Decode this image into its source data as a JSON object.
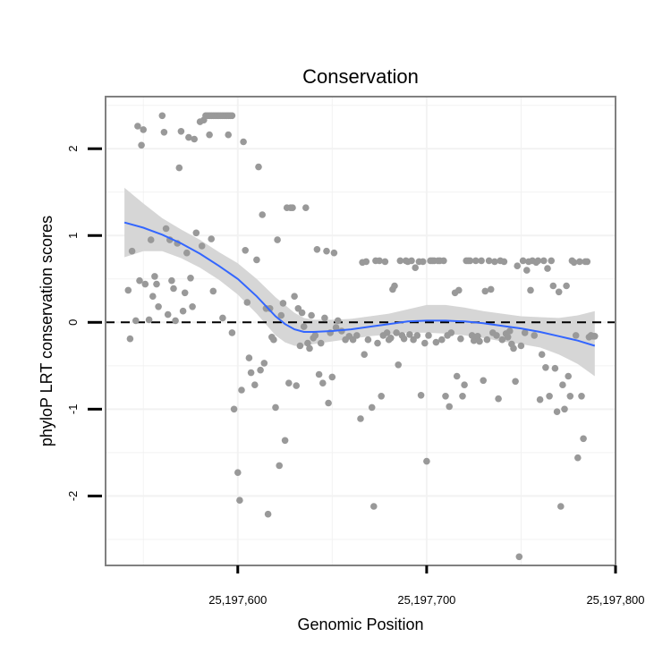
{
  "chart_data": {
    "type": "scatter",
    "title": "Conservation",
    "xlabel": "Genomic Position",
    "ylabel": "phyloP LRT conservation scores",
    "xlim": [
      25197530,
      25197800
    ],
    "ylim": [
      -2.8,
      2.6
    ],
    "x_ticks": [
      25197600,
      25197700,
      25197800
    ],
    "x_tick_labels": [
      "25,197,600",
      "25,197,700",
      "25,197,800"
    ],
    "y_ticks": [
      2,
      1,
      0,
      -1,
      -2
    ],
    "y_tick_labels": [
      "2",
      "1",
      "0",
      "-1",
      "-2"
    ],
    "reference_line": 0,
    "colors": {
      "points": "#999999",
      "smooth": "#3366ff",
      "band": "#d4d4d4",
      "panel_border": "#808080",
      "grid": "#f2f2f2"
    },
    "series": [
      {
        "name": "scores",
        "points": [
          [
            25197542,
            0.37
          ],
          [
            25197543,
            -0.19
          ],
          [
            25197544,
            0.82
          ],
          [
            25197546,
            0.02
          ],
          [
            25197547,
            2.26
          ],
          [
            25197548,
            0.48
          ],
          [
            25197549,
            2.04
          ],
          [
            25197550,
            2.22
          ],
          [
            25197551,
            0.44
          ],
          [
            25197553,
            0.03
          ],
          [
            25197554,
            0.95
          ],
          [
            25197555,
            0.3
          ],
          [
            25197556,
            0.53
          ],
          [
            25197557,
            0.44
          ],
          [
            25197558,
            0.18
          ],
          [
            25197560,
            2.38
          ],
          [
            25197561,
            2.19
          ],
          [
            25197562,
            1.08
          ],
          [
            25197563,
            0.09
          ],
          [
            25197564,
            0.95
          ],
          [
            25197565,
            0.48
          ],
          [
            25197566,
            0.39
          ],
          [
            25197567,
            0.02
          ],
          [
            25197568,
            0.91
          ],
          [
            25197569,
            1.78
          ],
          [
            25197570,
            2.2
          ],
          [
            25197571,
            0.13
          ],
          [
            25197572,
            0.34
          ],
          [
            25197573,
            0.8
          ],
          [
            25197574,
            2.13
          ],
          [
            25197575,
            0.51
          ],
          [
            25197576,
            0.18
          ],
          [
            25197577,
            2.11
          ],
          [
            25197578,
            1.03
          ],
          [
            25197580,
            2.31
          ],
          [
            25197581,
            0.88
          ],
          [
            25197582,
            2.33
          ],
          [
            25197583,
            2.38
          ],
          [
            25197584,
            2.38
          ],
          [
            25197585,
            2.38
          ],
          [
            25197586,
            2.38
          ],
          [
            25197587,
            2.38
          ],
          [
            25197588,
            2.38
          ],
          [
            25197589,
            2.38
          ],
          [
            25197590,
            2.38
          ],
          [
            25197591,
            2.38
          ],
          [
            25197592,
            2.38
          ],
          [
            25197593,
            2.38
          ],
          [
            25197594,
            2.38
          ],
          [
            25197595,
            2.38
          ],
          [
            25197596,
            2.38
          ],
          [
            25197597,
            2.38
          ],
          [
            25197585,
            2.16
          ],
          [
            25197586,
            0.96
          ],
          [
            25197587,
            0.36
          ],
          [
            25197592,
            0.05
          ],
          [
            25197595,
            2.16
          ],
          [
            25197597,
            -0.12
          ],
          [
            25197598,
            -1.0
          ],
          [
            25197600,
            -1.73
          ],
          [
            25197601,
            -2.05
          ],
          [
            25197602,
            -0.78
          ],
          [
            25197603,
            2.08
          ],
          [
            25197604,
            0.83
          ],
          [
            25197605,
            0.23
          ],
          [
            25197606,
            -0.41
          ],
          [
            25197607,
            -0.58
          ],
          [
            25197609,
            -0.72
          ],
          [
            25197610,
            0.72
          ],
          [
            25197611,
            1.79
          ],
          [
            25197612,
            -0.55
          ],
          [
            25197613,
            1.24
          ],
          [
            25197614,
            -0.47
          ],
          [
            25197615,
            0.16
          ],
          [
            25197616,
            -2.21
          ],
          [
            25197617,
            0.16
          ],
          [
            25197618,
            -0.17
          ],
          [
            25197619,
            -0.2
          ],
          [
            25197620,
            -0.98
          ],
          [
            25197621,
            0.95
          ],
          [
            25197622,
            -1.65
          ],
          [
            25197623,
            0.08
          ],
          [
            25197624,
            0.22
          ],
          [
            25197625,
            -1.36
          ],
          [
            25197626,
            1.32
          ],
          [
            25197627,
            -0.7
          ],
          [
            25197628,
            1.32
          ],
          [
            25197629,
            1.32
          ],
          [
            25197630,
            0.3
          ],
          [
            25197631,
            -0.73
          ],
          [
            25197632,
            0.16
          ],
          [
            25197633,
            -0.27
          ],
          [
            25197634,
            0.11
          ],
          [
            25197635,
            -0.05
          ],
          [
            25197636,
            1.32
          ],
          [
            25197637,
            -0.24
          ],
          [
            25197638,
            -0.3
          ],
          [
            25197639,
            0.08
          ],
          [
            25197640,
            -0.18
          ],
          [
            25197641,
            -0.15
          ],
          [
            25197642,
            0.84
          ],
          [
            25197643,
            -0.6
          ],
          [
            25197644,
            -0.24
          ],
          [
            25197645,
            -0.7
          ],
          [
            25197646,
            0.05
          ],
          [
            25197647,
            0.82
          ],
          [
            25197648,
            -0.93
          ],
          [
            25197649,
            -0.12
          ],
          [
            25197650,
            -0.63
          ],
          [
            25197651,
            0.8
          ],
          [
            25197652,
            -0.06
          ],
          [
            25197653,
            0.02
          ],
          [
            25197655,
            -0.1
          ],
          [
            25197657,
            -0.2
          ],
          [
            25197659,
            -0.16
          ],
          [
            25197661,
            -0.2
          ],
          [
            25197663,
            -0.15
          ],
          [
            25197665,
            -1.11
          ],
          [
            25197666,
            0.69
          ],
          [
            25197667,
            -0.37
          ],
          [
            25197668,
            0.7
          ],
          [
            25197669,
            -0.2
          ],
          [
            25197671,
            -0.98
          ],
          [
            25197672,
            -2.12
          ],
          [
            25197673,
            0.71
          ],
          [
            25197674,
            -0.24
          ],
          [
            25197675,
            0.71
          ],
          [
            25197676,
            -0.85
          ],
          [
            25197677,
            -0.15
          ],
          [
            25197678,
            0.7
          ],
          [
            25197679,
            -0.12
          ],
          [
            25197680,
            -0.2
          ],
          [
            25197681,
            -0.18
          ],
          [
            25197682,
            0.38
          ],
          [
            25197683,
            0.42
          ],
          [
            25197684,
            -0.12
          ],
          [
            25197685,
            -0.49
          ],
          [
            25197686,
            0.71
          ],
          [
            25197687,
            -0.15
          ],
          [
            25197688,
            -0.19
          ],
          [
            25197689,
            0.71
          ],
          [
            25197690,
            0.7
          ],
          [
            25197691,
            -0.14
          ],
          [
            25197692,
            0.71
          ],
          [
            25197693,
            -0.2
          ],
          [
            25197694,
            0.63
          ],
          [
            25197695,
            -0.15
          ],
          [
            25197696,
            0.7
          ],
          [
            25197697,
            -0.84
          ],
          [
            25197698,
            0.7
          ],
          [
            25197699,
            -0.24
          ],
          [
            25197700,
            -1.6
          ],
          [
            25197701,
            -0.15
          ],
          [
            25197702,
            0.71
          ],
          [
            25197703,
            0.71
          ],
          [
            25197704,
            0.71
          ],
          [
            25197705,
            -0.23
          ],
          [
            25197706,
            0.71
          ],
          [
            25197707,
            0.71
          ],
          [
            25197708,
            -0.2
          ],
          [
            25197709,
            0.71
          ],
          [
            25197710,
            -0.85
          ],
          [
            25197711,
            -0.15
          ],
          [
            25197712,
            -0.97
          ],
          [
            25197713,
            -0.12
          ],
          [
            25197715,
            0.34
          ],
          [
            25197716,
            -0.62
          ],
          [
            25197717,
            0.37
          ],
          [
            25197718,
            -0.19
          ],
          [
            25197719,
            -0.85
          ],
          [
            25197720,
            -0.72
          ],
          [
            25197721,
            0.71
          ],
          [
            25197722,
            0.71
          ],
          [
            25197723,
            0.71
          ],
          [
            25197724,
            -0.15
          ],
          [
            25197725,
            -0.21
          ],
          [
            25197726,
            0.71
          ],
          [
            25197727,
            -0.16
          ],
          [
            25197728,
            -0.22
          ],
          [
            25197729,
            0.71
          ],
          [
            25197730,
            -0.67
          ],
          [
            25197731,
            0.36
          ],
          [
            25197732,
            -0.2
          ],
          [
            25197733,
            0.71
          ],
          [
            25197734,
            0.38
          ],
          [
            25197735,
            -0.12
          ],
          [
            25197736,
            0.7
          ],
          [
            25197737,
            -0.15
          ],
          [
            25197738,
            -0.88
          ],
          [
            25197739,
            0.71
          ],
          [
            25197740,
            -0.2
          ],
          [
            25197741,
            0.7
          ],
          [
            25197742,
            -0.13
          ],
          [
            25197743,
            -0.17
          ],
          [
            25197744,
            -0.1
          ],
          [
            25197745,
            -0.25
          ],
          [
            25197746,
            -0.3
          ],
          [
            25197747,
            -0.68
          ],
          [
            25197748,
            0.65
          ],
          [
            25197749,
            -2.7
          ],
          [
            25197750,
            -0.27
          ],
          [
            25197751,
            0.71
          ],
          [
            25197752,
            -0.12
          ],
          [
            25197753,
            0.6
          ],
          [
            25197754,
            0.7
          ],
          [
            25197755,
            0.37
          ],
          [
            25197756,
            0.71
          ],
          [
            25197757,
            -0.15
          ],
          [
            25197758,
            0.69
          ],
          [
            25197759,
            0.71
          ],
          [
            25197760,
            -0.89
          ],
          [
            25197761,
            -0.37
          ],
          [
            25197762,
            0.71
          ],
          [
            25197763,
            -0.52
          ],
          [
            25197764,
            0.62
          ],
          [
            25197765,
            -0.85
          ],
          [
            25197766,
            0.71
          ],
          [
            25197767,
            0.42
          ],
          [
            25197768,
            -0.53
          ],
          [
            25197769,
            -1.03
          ],
          [
            25197770,
            0.35
          ],
          [
            25197771,
            -2.12
          ],
          [
            25197772,
            -0.72
          ],
          [
            25197773,
            -1.0
          ],
          [
            25197774,
            0.42
          ],
          [
            25197775,
            -0.62
          ],
          [
            25197776,
            -0.85
          ],
          [
            25197777,
            0.71
          ],
          [
            25197778,
            0.69
          ],
          [
            25197779,
            -0.15
          ],
          [
            25197780,
            -1.56
          ],
          [
            25197781,
            0.7
          ],
          [
            25197782,
            -0.85
          ],
          [
            25197783,
            -1.34
          ],
          [
            25197784,
            0.7
          ],
          [
            25197785,
            0.7
          ],
          [
            25197786,
            -0.17
          ],
          [
            25197787,
            -0.15
          ],
          [
            25197788,
            -0.16
          ],
          [
            25197789,
            -0.16
          ]
        ]
      }
    ],
    "smooth": {
      "x": [
        25197540,
        25197550,
        25197560,
        25197570,
        25197580,
        25197590,
        25197600,
        25197610,
        25197620,
        25197625,
        25197630,
        25197635,
        25197640,
        25197650,
        25197660,
        25197670,
        25197680,
        25197690,
        25197700,
        25197710,
        25197720,
        25197730,
        25197740,
        25197750,
        25197760,
        25197770,
        25197780,
        25197789
      ],
      "y": [
        1.15,
        1.09,
        1.01,
        0.91,
        0.79,
        0.65,
        0.5,
        0.3,
        0.07,
        -0.02,
        -0.08,
        -0.11,
        -0.11,
        -0.1,
        -0.08,
        -0.05,
        -0.02,
        0.01,
        0.02,
        0.02,
        0.01,
        -0.01,
        -0.04,
        -0.07,
        -0.11,
        -0.16,
        -0.21,
        -0.27
      ],
      "lower": [
        0.75,
        0.82,
        0.82,
        0.74,
        0.63,
        0.49,
        0.32,
        0.1,
        -0.15,
        -0.23,
        -0.27,
        -0.27,
        -0.25,
        -0.22,
        -0.19,
        -0.16,
        -0.14,
        -0.12,
        -0.12,
        -0.13,
        -0.15,
        -0.18,
        -0.22,
        -0.25,
        -0.29,
        -0.37,
        -0.48,
        -0.62
      ],
      "upper": [
        1.55,
        1.37,
        1.2,
        1.07,
        0.95,
        0.81,
        0.68,
        0.5,
        0.29,
        0.2,
        0.11,
        0.05,
        0.03,
        0.03,
        0.04,
        0.07,
        0.1,
        0.15,
        0.2,
        0.2,
        0.17,
        0.13,
        0.1,
        0.07,
        0.06,
        0.05,
        0.08,
        0.13
      ]
    }
  }
}
